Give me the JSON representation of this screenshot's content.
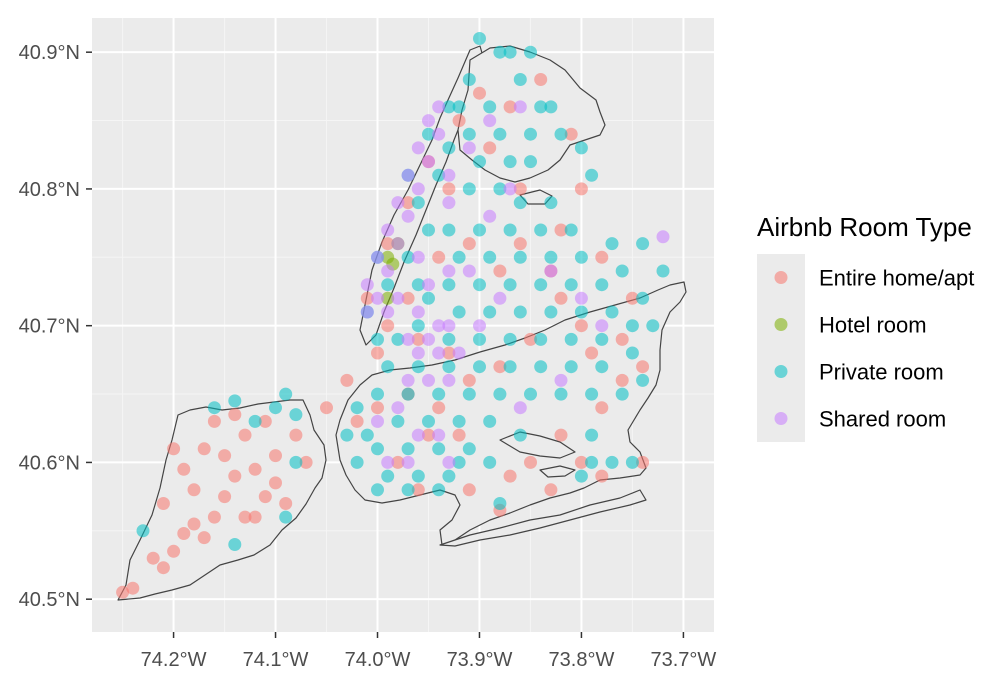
{
  "chart_data": {
    "type": "scatter",
    "title": "",
    "xlabel": "",
    "ylabel": "",
    "xlim": [
      -74.28,
      -73.67
    ],
    "ylim": [
      40.476,
      40.925
    ],
    "grid": true,
    "legend_position": "right",
    "x_ticks": [
      {
        "value": -74.2,
        "label": "74.2°W"
      },
      {
        "value": -74.1,
        "label": "74.1°W"
      },
      {
        "value": -74.0,
        "label": "74.0°W"
      },
      {
        "value": -73.9,
        "label": "73.9°W"
      },
      {
        "value": -73.8,
        "label": "73.8°W"
      },
      {
        "value": -73.7,
        "label": "73.7°W"
      }
    ],
    "y_ticks": [
      {
        "value": 40.5,
        "label": "40.5°N"
      },
      {
        "value": 40.6,
        "label": "40.6°N"
      },
      {
        "value": 40.7,
        "label": "40.7°N"
      },
      {
        "value": 40.8,
        "label": "40.8°N"
      },
      {
        "value": 40.9,
        "label": "40.9°N"
      }
    ],
    "legend": {
      "title": "Airbnb Room Type",
      "items": [
        {
          "label": "Entire home/apt",
          "color": "#F8766D"
        },
        {
          "label": "Hotel room",
          "color": "#7CAE00"
        },
        {
          "label": "Private room",
          "color": "#00BFC4"
        },
        {
          "label": "Shared room",
          "color": "#C77CFF"
        }
      ]
    },
    "series": [
      {
        "name": "Entire home/apt",
        "color": "#F8766D",
        "points": [
          [
            -74.24,
            40.508
          ],
          [
            -74.25,
            40.505
          ],
          [
            -74.22,
            40.53
          ],
          [
            -74.21,
            40.523
          ],
          [
            -74.2,
            40.535
          ],
          [
            -74.19,
            40.548
          ],
          [
            -74.17,
            40.545
          ],
          [
            -74.16,
            40.56
          ],
          [
            -74.15,
            40.575
          ],
          [
            -74.13,
            40.56
          ],
          [
            -74.12,
            40.56
          ],
          [
            -74.11,
            40.575
          ],
          [
            -74.1,
            40.585
          ],
          [
            -74.09,
            40.57
          ],
          [
            -74.18,
            40.58
          ],
          [
            -74.19,
            40.595
          ],
          [
            -74.17,
            40.61
          ],
          [
            -74.15,
            40.605
          ],
          [
            -74.13,
            40.62
          ],
          [
            -74.11,
            40.63
          ],
          [
            -74.14,
            40.635
          ],
          [
            -74.16,
            40.63
          ],
          [
            -74.08,
            40.62
          ],
          [
            -74.07,
            40.6
          ],
          [
            -74.2,
            40.61
          ],
          [
            -74.12,
            40.595
          ],
          [
            -74.1,
            40.605
          ],
          [
            -74.14,
            40.59
          ],
          [
            -74.21,
            40.57
          ],
          [
            -74.18,
            40.555
          ],
          [
            -74.05,
            40.64
          ],
          [
            -73.98,
            40.6
          ],
          [
            -73.96,
            40.58
          ],
          [
            -73.91,
            40.58
          ],
          [
            -73.88,
            40.565
          ],
          [
            -73.85,
            40.6
          ],
          [
            -73.82,
            40.62
          ],
          [
            -73.78,
            40.64
          ],
          [
            -73.76,
            40.66
          ],
          [
            -73.8,
            40.7
          ],
          [
            -73.75,
            40.72
          ],
          [
            -73.78,
            40.75
          ],
          [
            -73.82,
            40.77
          ],
          [
            -73.86,
            40.8
          ],
          [
            -73.89,
            40.83
          ],
          [
            -73.87,
            40.86
          ],
          [
            -73.84,
            40.88
          ],
          [
            -73.9,
            40.87
          ],
          [
            -73.92,
            40.85
          ],
          [
            -73.95,
            40.82
          ],
          [
            -73.97,
            40.79
          ],
          [
            -73.99,
            40.76
          ],
          [
            -74.01,
            40.72
          ],
          [
            -73.99,
            40.7
          ],
          [
            -73.96,
            40.69
          ],
          [
            -73.93,
            40.68
          ],
          [
            -73.91,
            40.66
          ],
          [
            -73.94,
            40.64
          ],
          [
            -73.97,
            40.65
          ],
          [
            -74.0,
            40.64
          ],
          [
            -74.02,
            40.63
          ],
          [
            -73.95,
            40.62
          ],
          [
            -73.92,
            40.62
          ],
          [
            -73.88,
            40.67
          ],
          [
            -73.85,
            40.69
          ],
          [
            -73.82,
            40.72
          ],
          [
            -73.79,
            40.68
          ],
          [
            -73.76,
            40.69
          ],
          [
            -73.74,
            40.67
          ],
          [
            -73.8,
            40.6
          ],
          [
            -73.78,
            40.59
          ],
          [
            -73.83,
            40.74
          ],
          [
            -73.8,
            40.8
          ],
          [
            -73.81,
            40.84
          ],
          [
            -73.86,
            40.76
          ],
          [
            -73.88,
            40.74
          ],
          [
            -73.91,
            40.76
          ],
          [
            -73.93,
            40.8
          ],
          [
            -73.94,
            40.75
          ],
          [
            -73.97,
            40.72
          ],
          [
            -74.0,
            40.68
          ],
          [
            -74.03,
            40.66
          ],
          [
            -73.74,
            40.6
          ],
          [
            -73.83,
            40.58
          ],
          [
            -73.87,
            40.59
          ]
        ]
      },
      {
        "name": "Hotel room",
        "color": "#7CAE00",
        "points": [
          [
            -73.99,
            40.75
          ],
          [
            -73.98,
            40.76
          ],
          [
            -73.985,
            40.745
          ],
          [
            -73.99,
            40.72
          ]
        ]
      },
      {
        "name": "Private room",
        "color": "#00BFC4",
        "points": [
          [
            -74.23,
            40.55
          ],
          [
            -74.16,
            40.64
          ],
          [
            -74.14,
            40.645
          ],
          [
            -74.12,
            40.63
          ],
          [
            -74.1,
            40.64
          ],
          [
            -74.09,
            40.65
          ],
          [
            -74.08,
            40.6
          ],
          [
            -74.09,
            40.56
          ],
          [
            -74.14,
            40.54
          ],
          [
            -74.08,
            40.635
          ],
          [
            -73.9,
            40.91
          ],
          [
            -73.87,
            40.9
          ],
          [
            -73.86,
            40.88
          ],
          [
            -73.89,
            40.86
          ],
          [
            -73.92,
            40.86
          ],
          [
            -73.91,
            40.84
          ],
          [
            -73.88,
            40.84
          ],
          [
            -73.85,
            40.84
          ],
          [
            -73.83,
            40.86
          ],
          [
            -73.82,
            40.84
          ],
          [
            -73.85,
            40.82
          ],
          [
            -73.87,
            40.82
          ],
          [
            -73.9,
            40.82
          ],
          [
            -73.93,
            40.83
          ],
          [
            -73.94,
            40.81
          ],
          [
            -73.91,
            40.8
          ],
          [
            -73.88,
            40.8
          ],
          [
            -73.86,
            40.79
          ],
          [
            -73.83,
            40.79
          ],
          [
            -73.81,
            40.77
          ],
          [
            -73.84,
            40.77
          ],
          [
            -73.87,
            40.77
          ],
          [
            -73.9,
            40.77
          ],
          [
            -73.93,
            40.77
          ],
          [
            -73.92,
            40.75
          ],
          [
            -73.89,
            40.75
          ],
          [
            -73.86,
            40.75
          ],
          [
            -73.83,
            40.75
          ],
          [
            -73.8,
            40.75
          ],
          [
            -73.78,
            40.73
          ],
          [
            -73.81,
            40.73
          ],
          [
            -73.84,
            40.73
          ],
          [
            -73.87,
            40.73
          ],
          [
            -73.9,
            40.73
          ],
          [
            -73.93,
            40.73
          ],
          [
            -73.95,
            40.72
          ],
          [
            -73.92,
            40.71
          ],
          [
            -73.89,
            40.71
          ],
          [
            -73.86,
            40.71
          ],
          [
            -73.83,
            40.71
          ],
          [
            -73.8,
            40.71
          ],
          [
            -73.77,
            40.71
          ],
          [
            -73.75,
            40.7
          ],
          [
            -73.78,
            40.69
          ],
          [
            -73.81,
            40.69
          ],
          [
            -73.84,
            40.69
          ],
          [
            -73.87,
            40.69
          ],
          [
            -73.9,
            40.69
          ],
          [
            -73.93,
            40.69
          ],
          [
            -73.96,
            40.7
          ],
          [
            -73.98,
            40.69
          ],
          [
            -74.0,
            40.69
          ],
          [
            -73.99,
            40.67
          ],
          [
            -73.96,
            40.67
          ],
          [
            -73.93,
            40.67
          ],
          [
            -73.9,
            40.67
          ],
          [
            -73.87,
            40.67
          ],
          [
            -73.84,
            40.67
          ],
          [
            -73.81,
            40.67
          ],
          [
            -73.78,
            40.67
          ],
          [
            -73.75,
            40.68
          ],
          [
            -73.76,
            40.65
          ],
          [
            -73.79,
            40.65
          ],
          [
            -73.82,
            40.65
          ],
          [
            -73.85,
            40.65
          ],
          [
            -73.88,
            40.65
          ],
          [
            -73.91,
            40.65
          ],
          [
            -73.94,
            40.65
          ],
          [
            -73.97,
            40.65
          ],
          [
            -74.0,
            40.65
          ],
          [
            -74.02,
            40.64
          ],
          [
            -74.01,
            40.62
          ],
          [
            -73.98,
            40.63
          ],
          [
            -73.95,
            40.63
          ],
          [
            -73.92,
            40.63
          ],
          [
            -73.89,
            40.63
          ],
          [
            -74.0,
            40.61
          ],
          [
            -73.97,
            40.61
          ],
          [
            -73.94,
            40.61
          ],
          [
            -73.91,
            40.61
          ],
          [
            -73.99,
            40.59
          ],
          [
            -73.96,
            40.59
          ],
          [
            -73.93,
            40.59
          ],
          [
            -74.03,
            40.62
          ],
          [
            -74.02,
            40.6
          ],
          [
            -74.0,
            40.58
          ],
          [
            -73.97,
            40.58
          ],
          [
            -73.94,
            40.58
          ],
          [
            -73.92,
            40.6
          ],
          [
            -73.89,
            40.6
          ],
          [
            -73.88,
            40.57
          ],
          [
            -73.8,
            40.59
          ],
          [
            -73.77,
            40.6
          ],
          [
            -73.75,
            40.6
          ],
          [
            -73.79,
            40.6
          ],
          [
            -73.95,
            40.77
          ],
          [
            -73.96,
            40.79
          ],
          [
            -73.97,
            40.81
          ],
          [
            -73.95,
            40.84
          ],
          [
            -73.93,
            40.86
          ],
          [
            -73.91,
            40.88
          ],
          [
            -73.88,
            40.9
          ],
          [
            -73.85,
            40.9
          ],
          [
            -73.84,
            40.86
          ],
          [
            -73.8,
            40.83
          ],
          [
            -73.79,
            40.81
          ],
          [
            -73.77,
            40.76
          ],
          [
            -73.76,
            40.74
          ],
          [
            -73.74,
            40.72
          ],
          [
            -73.73,
            40.7
          ],
          [
            -73.74,
            40.66
          ],
          [
            -73.72,
            40.74
          ],
          [
            -73.74,
            40.76
          ],
          [
            -73.79,
            40.62
          ],
          [
            -73.86,
            40.62
          ],
          [
            -73.99,
            40.73
          ],
          [
            -74.0,
            40.75
          ],
          [
            -73.97,
            40.75
          ],
          [
            -74.01,
            40.71
          ],
          [
            -73.96,
            40.73
          ]
        ]
      },
      {
        "name": "Shared room",
        "color": "#C77CFF",
        "points": [
          [
            -73.94,
            40.86
          ],
          [
            -73.95,
            40.85
          ],
          [
            -73.94,
            40.84
          ],
          [
            -73.96,
            40.83
          ],
          [
            -73.95,
            40.82
          ],
          [
            -73.97,
            40.81
          ],
          [
            -73.96,
            40.8
          ],
          [
            -73.98,
            40.79
          ],
          [
            -73.97,
            40.78
          ],
          [
            -73.99,
            40.77
          ],
          [
            -73.98,
            40.76
          ],
          [
            -74.0,
            40.75
          ],
          [
            -73.99,
            40.74
          ],
          [
            -74.01,
            40.73
          ],
          [
            -74.0,
            40.72
          ],
          [
            -74.01,
            40.71
          ],
          [
            -73.99,
            40.71
          ],
          [
            -73.98,
            40.72
          ],
          [
            -73.96,
            40.71
          ],
          [
            -73.94,
            40.7
          ],
          [
            -73.93,
            40.7
          ],
          [
            -73.95,
            40.69
          ],
          [
            -73.96,
            40.68
          ],
          [
            -73.94,
            40.68
          ],
          [
            -73.92,
            40.68
          ],
          [
            -73.97,
            40.66
          ],
          [
            -73.95,
            40.66
          ],
          [
            -73.93,
            40.66
          ],
          [
            -74.0,
            40.63
          ],
          [
            -73.98,
            40.64
          ],
          [
            -73.96,
            40.62
          ],
          [
            -73.94,
            40.62
          ],
          [
            -73.97,
            40.6
          ],
          [
            -73.99,
            40.6
          ],
          [
            -73.93,
            40.6
          ],
          [
            -73.9,
            40.7
          ],
          [
            -73.88,
            40.72
          ],
          [
            -73.91,
            40.74
          ],
          [
            -73.89,
            40.78
          ],
          [
            -73.87,
            40.8
          ],
          [
            -73.93,
            40.79
          ],
          [
            -73.93,
            40.81
          ],
          [
            -73.91,
            40.83
          ],
          [
            -73.89,
            40.85
          ],
          [
            -73.86,
            40.86
          ],
          [
            -73.83,
            40.74
          ],
          [
            -73.8,
            40.72
          ],
          [
            -73.78,
            40.7
          ],
          [
            -73.82,
            40.66
          ],
          [
            -73.86,
            40.64
          ],
          [
            -73.72,
            40.765
          ],
          [
            -73.93,
            40.74
          ],
          [
            -73.96,
            40.75
          ],
          [
            -73.95,
            40.73
          ],
          [
            -73.97,
            40.69
          ]
        ]
      }
    ]
  }
}
